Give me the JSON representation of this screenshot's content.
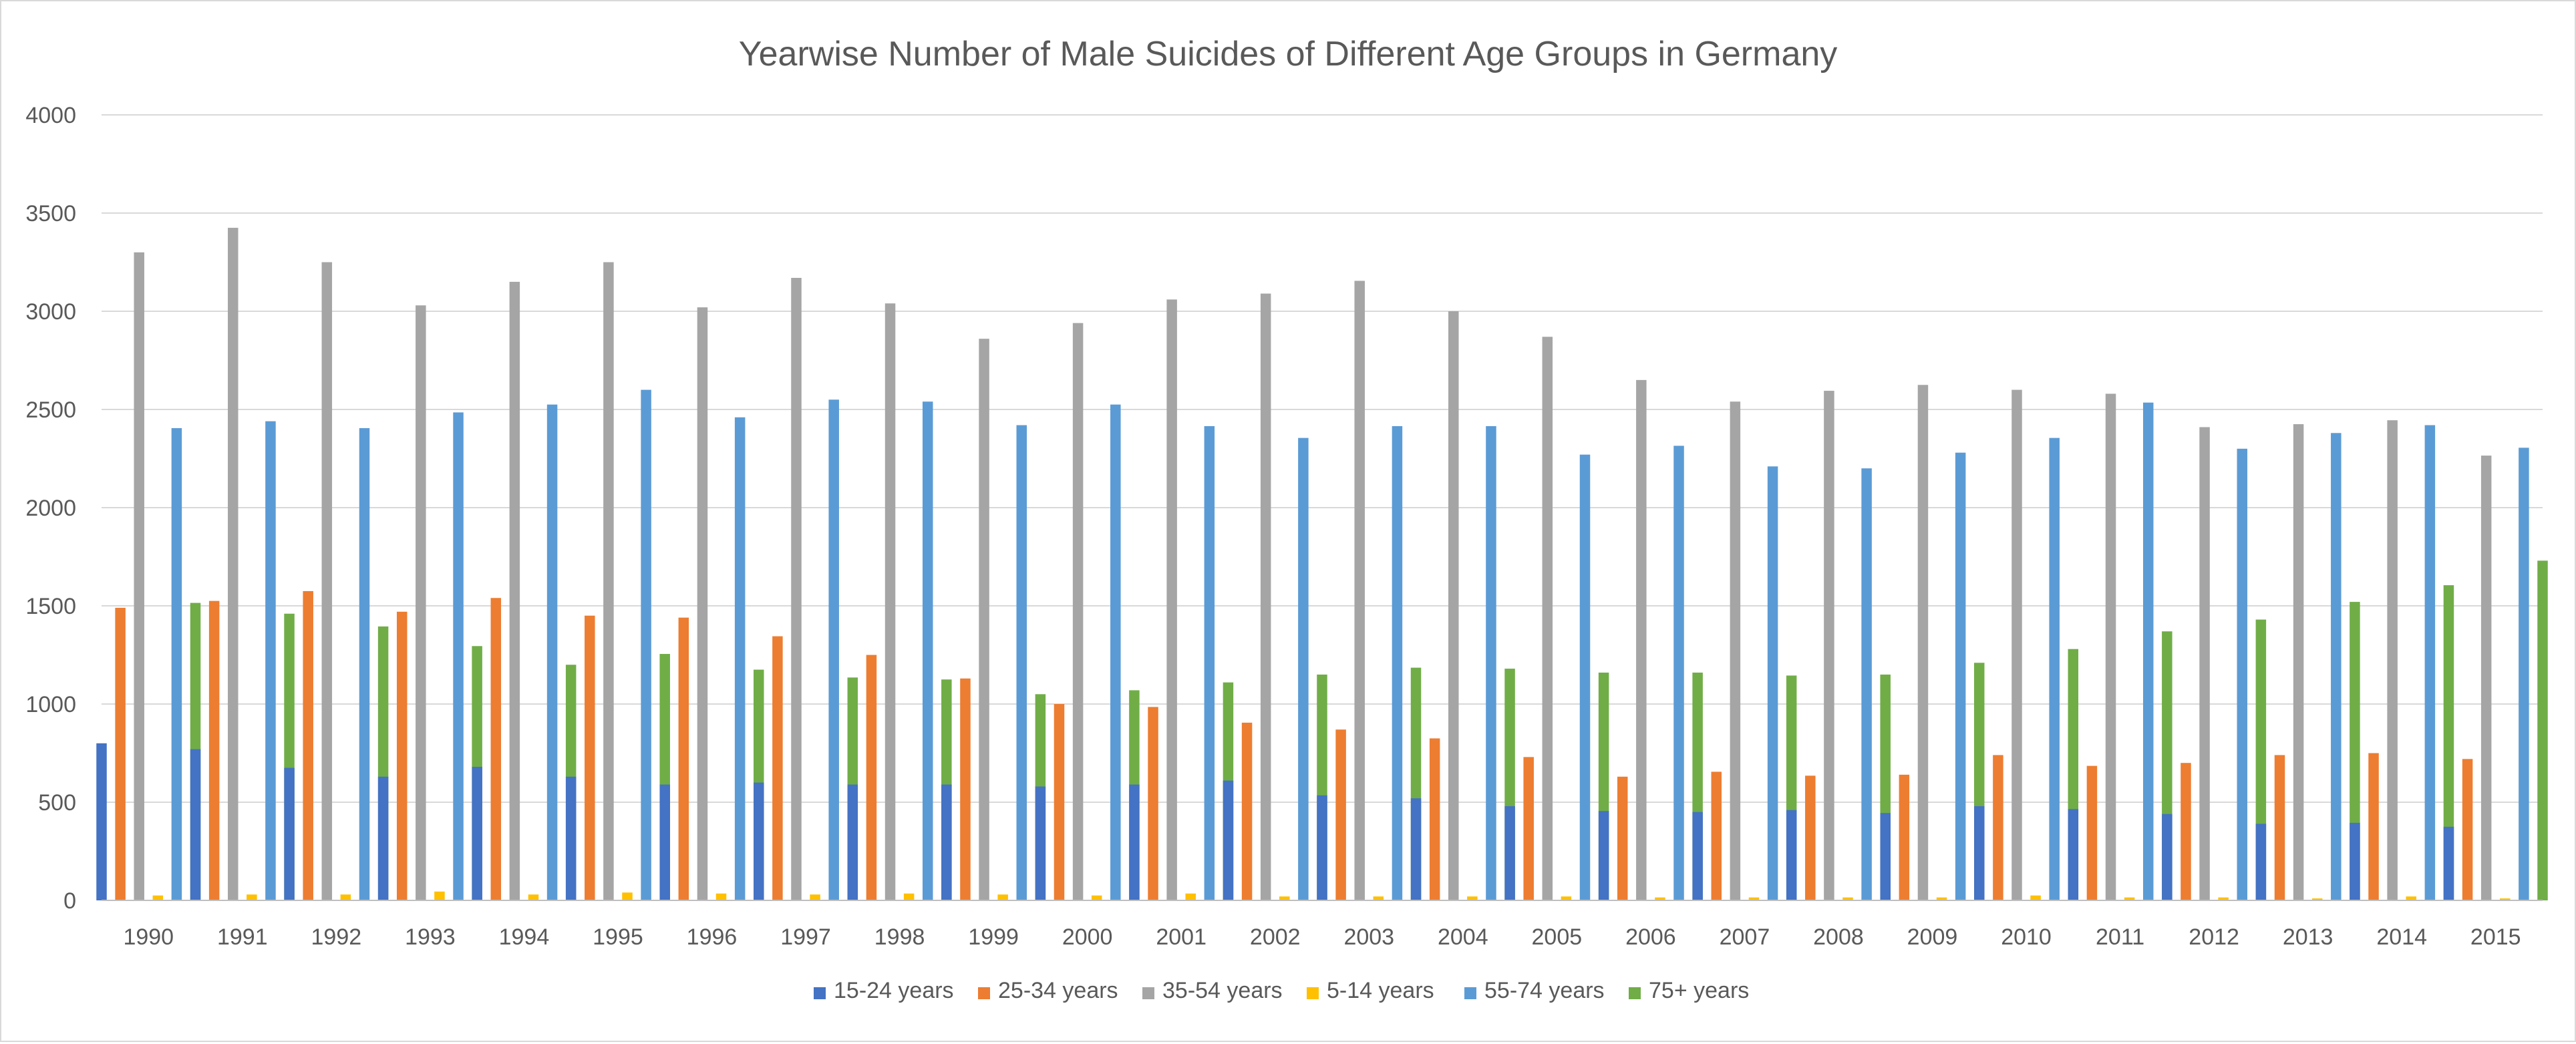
{
  "chart_data": {
    "type": "bar",
    "title": "Yearwise Number of Male Suicides of Different Age Groups in Germany",
    "xlabel": "",
    "ylabel": "",
    "ylim": [
      0,
      4000
    ],
    "yticks": [
      0,
      500,
      1000,
      1500,
      2000,
      2500,
      3000,
      3500,
      4000
    ],
    "grid": true,
    "legend_position": "bottom",
    "categories": [
      "1990",
      "1991",
      "1992",
      "1993",
      "1994",
      "1995",
      "1996",
      "1997",
      "1998",
      "1999",
      "2000",
      "2001",
      "2002",
      "2003",
      "2004",
      "2005",
      "2006",
      "2007",
      "2008",
      "2009",
      "2010",
      "2011",
      "2012",
      "2013",
      "2014",
      "2015"
    ],
    "series": [
      {
        "name": "15-24 years",
        "color": "#4472C4",
        "values": [
          800,
          770,
          675,
          630,
          680,
          630,
          590,
          600,
          590,
          590,
          580,
          590,
          610,
          535,
          520,
          480,
          455,
          450,
          460,
          445,
          480,
          465,
          440,
          390,
          395,
          375
        ]
      },
      {
        "name": "25-34 years",
        "color": "#ED7D31",
        "values": [
          1490,
          1525,
          1575,
          1470,
          1540,
          1450,
          1440,
          1345,
          1250,
          1130,
          1000,
          985,
          905,
          870,
          825,
          730,
          630,
          655,
          635,
          640,
          740,
          685,
          700,
          740,
          750,
          720
        ]
      },
      {
        "name": "35-54 years",
        "color": "#A5A5A5",
        "values": [
          3300,
          3425,
          3250,
          3030,
          3150,
          3250,
          3020,
          3170,
          3040,
          2860,
          2940,
          3060,
          3090,
          3155,
          3000,
          2870,
          2650,
          2540,
          2595,
          2625,
          2600,
          2580,
          2410,
          2425,
          2445,
          2265
        ]
      },
      {
        "name": "5-14 years",
        "color": "#FFC000",
        "values": [
          25,
          30,
          30,
          45,
          30,
          40,
          35,
          30,
          35,
          30,
          25,
          35,
          20,
          20,
          20,
          20,
          15,
          15,
          15,
          15,
          25,
          15,
          15,
          10,
          20,
          10
        ]
      },
      {
        "name": "55-74 years",
        "color": "#5B9BD5",
        "values": [
          2405,
          2440,
          2405,
          2485,
          2525,
          2600,
          2460,
          2550,
          2540,
          2420,
          2525,
          2415,
          2355,
          2415,
          2415,
          2270,
          2315,
          2210,
          2200,
          2280,
          2355,
          2535,
          2300,
          2380,
          2420,
          2305
        ]
      },
      {
        "name": "75+ years",
        "color": "#70AD47",
        "values": [
          1515,
          1460,
          1395,
          1295,
          1200,
          1255,
          1175,
          1135,
          1125,
          1050,
          1070,
          1110,
          1150,
          1185,
          1180,
          1160,
          1160,
          1145,
          1150,
          1210,
          1280,
          1370,
          1430,
          1520,
          1605,
          1730
        ]
      }
    ]
  }
}
